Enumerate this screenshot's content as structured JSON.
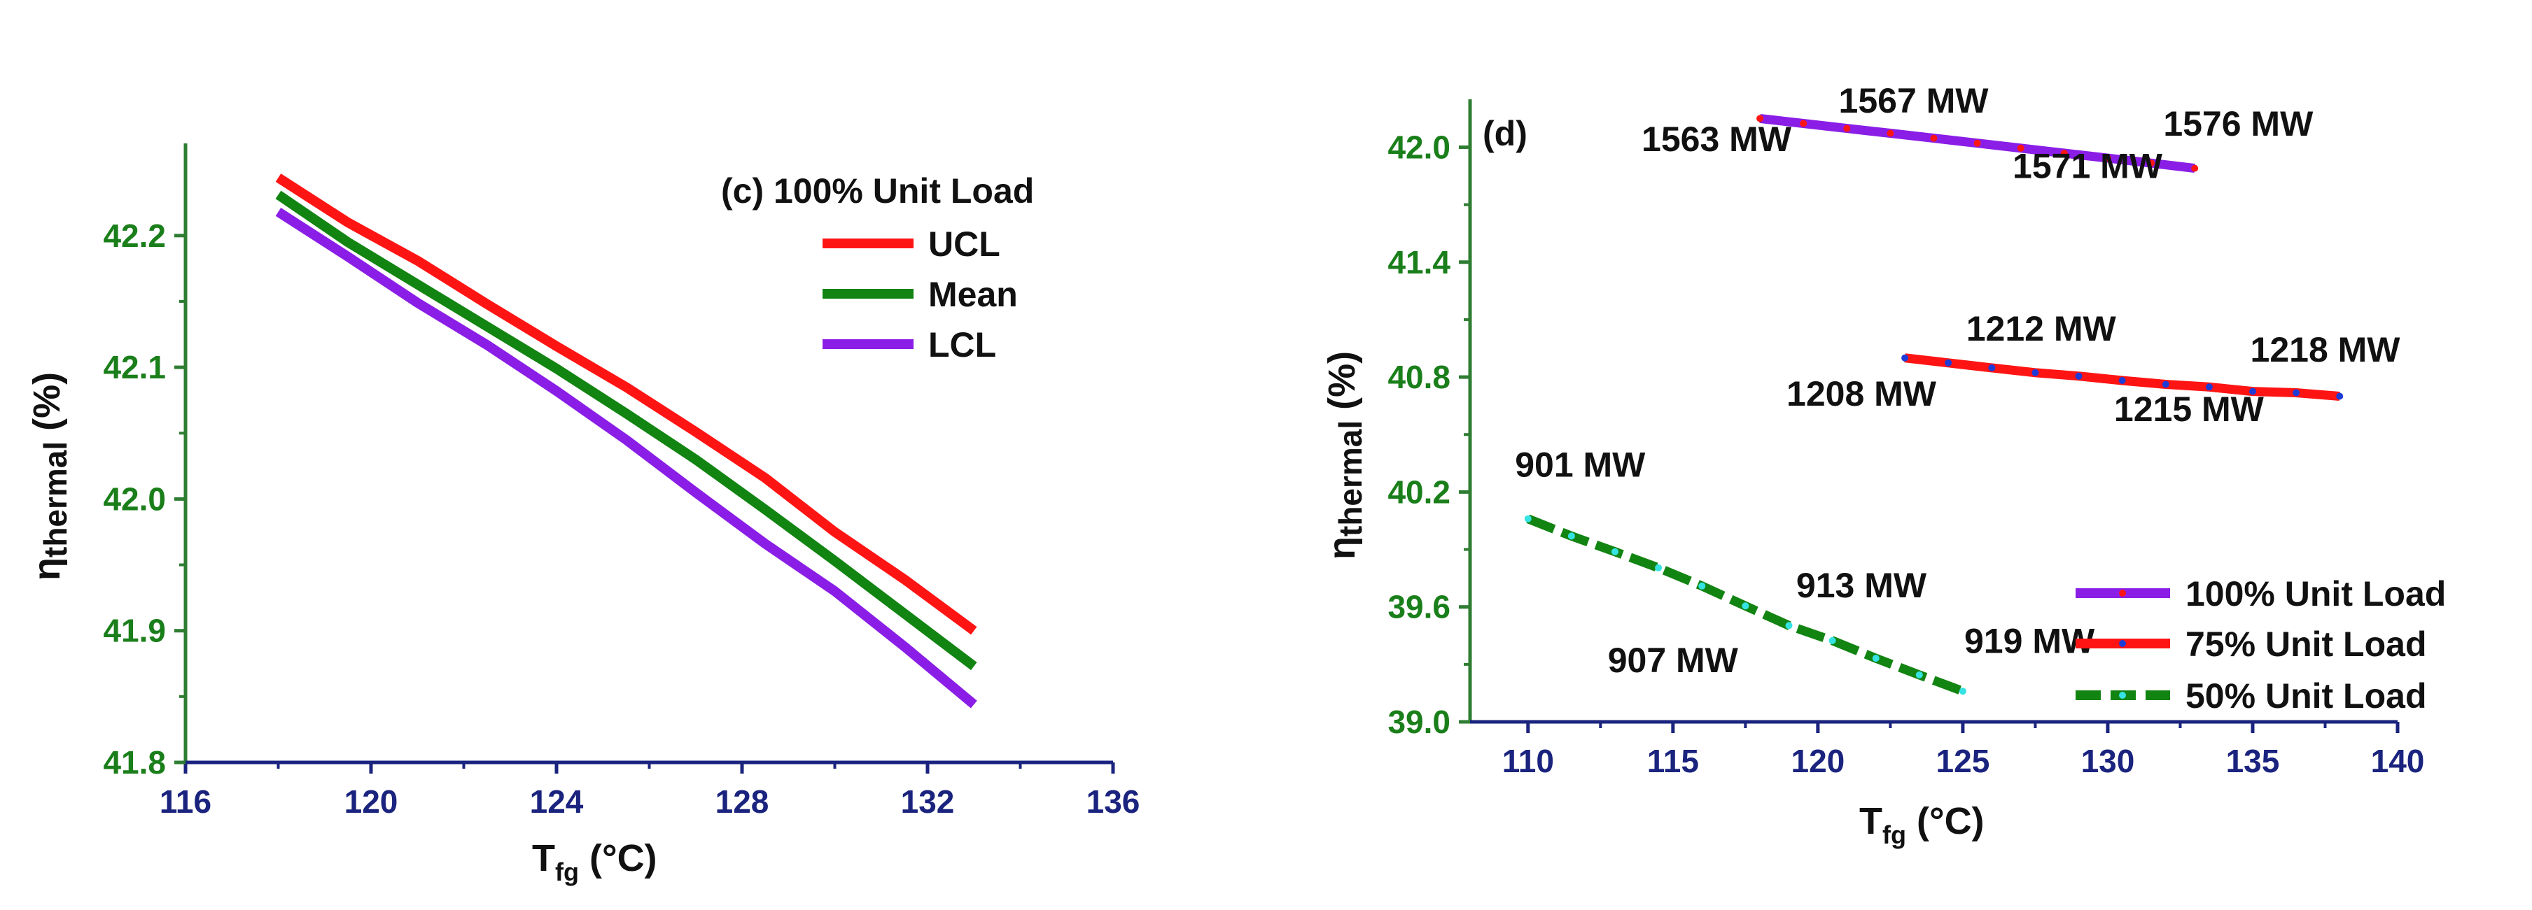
{
  "colors": {
    "ytick": "#1a7f1a",
    "xtick": "#1a237e",
    "axis": "#2e7d32",
    "ucl": "#ff1414",
    "mean": "#128412",
    "lcl": "#8a1ee6",
    "load100": "#8a1ee6",
    "load75": "#ff1414",
    "load50": "#128412",
    "dot75": "#1f3bd6",
    "dot50": "#35e3e3",
    "dot100": "#ff1414"
  },
  "chart_data": [
    {
      "id": "c",
      "type": "line",
      "title": "(c) 100% Unit Load",
      "xlabel_main": "T",
      "xlabel_sub": "fg",
      "xlabel_unit": " (°C)",
      "ylabel_main": "η",
      "ylabel_sub": "thermal",
      "ylabel_unit": " (%)",
      "xlim": [
        116,
        136
      ],
      "ylim": [
        41.8,
        42.27
      ],
      "xticks": [
        "116",
        "120",
        "124",
        "128",
        "132",
        "136"
      ],
      "yticks": [
        "41.8",
        "41.9",
        "42.0",
        "42.1",
        "42.2"
      ],
      "x": [
        118,
        119.5,
        121,
        122.5,
        124,
        125.5,
        127,
        128.5,
        130,
        131.5,
        133
      ],
      "series": [
        {
          "name": "UCL",
          "color_key": "ucl",
          "values": [
            42.244,
            42.21,
            42.181,
            42.148,
            42.116,
            42.085,
            42.051,
            42.016,
            41.975,
            41.939,
            41.9
          ]
        },
        {
          "name": "Mean",
          "color_key": "mean",
          "values": [
            42.231,
            42.195,
            42.163,
            42.131,
            42.099,
            42.065,
            42.03,
            41.992,
            41.953,
            41.913,
            41.873
          ]
        },
        {
          "name": "LCL",
          "color_key": "lcl",
          "values": [
            42.218,
            42.184,
            42.149,
            42.117,
            42.082,
            42.045,
            42.005,
            41.966,
            41.93,
            41.888,
            41.844
          ]
        }
      ]
    },
    {
      "id": "d",
      "type": "line",
      "panel_label": "(d)",
      "xlabel_main": "T",
      "xlabel_sub": "fg",
      "xlabel_unit": " (°C)",
      "ylabel_main": "η",
      "ylabel_sub": "thermal",
      "ylabel_unit": " (%)",
      "xlim": [
        108,
        140
      ],
      "ylim": [
        39.0,
        42.25
      ],
      "xticks": [
        "110",
        "115",
        "120",
        "125",
        "130",
        "135",
        "140"
      ],
      "yticks": [
        "39.0",
        "39.6",
        "40.2",
        "40.8",
        "41.4",
        "42.0"
      ],
      "series": [
        {
          "name": "100% Unit Load",
          "color_key": "load100",
          "dot_key": "dot100",
          "x": [
            118,
            119.5,
            121,
            122.5,
            124,
            125.5,
            127,
            128.5,
            130,
            131.5,
            133
          ],
          "values": [
            42.15,
            42.124,
            42.098,
            42.073,
            42.047,
            42.021,
            41.995,
            41.969,
            41.943,
            41.917,
            41.89
          ]
        },
        {
          "name": "75% Unit Load",
          "color_key": "load75",
          "dot_key": "dot75",
          "x": [
            123,
            124.5,
            126,
            127.5,
            129,
            130.5,
            132,
            133.5,
            135,
            136.5,
            138
          ],
          "values": [
            40.9,
            40.874,
            40.848,
            40.823,
            40.805,
            40.782,
            40.762,
            40.748,
            40.725,
            40.718,
            40.7
          ]
        },
        {
          "name": "50% Unit Load",
          "color_key": "load50",
          "dot_key": "dot50",
          "x": [
            110,
            111.5,
            113,
            114.5,
            116,
            117.5,
            119,
            120.5,
            122,
            123.5,
            125
          ],
          "values": [
            40.06,
            39.97,
            39.888,
            39.804,
            39.709,
            39.605,
            39.503,
            39.424,
            39.332,
            39.245,
            39.16
          ]
        }
      ],
      "annotations": [
        {
          "text": "1567 MW",
          "x": 123.3,
          "y": 42.18
        },
        {
          "text": "1576 MW",
          "x": 134.5,
          "y": 42.06
        },
        {
          "text": "1563 MW",
          "x": 116.5,
          "y": 41.98
        },
        {
          "text": "1571 MW",
          "x": 129.3,
          "y": 41.84
        },
        {
          "text": "1212 MW",
          "x": 127.7,
          "y": 40.99
        },
        {
          "text": "1218 MW",
          "x": 137.5,
          "y": 40.88
        },
        {
          "text": "1208 MW",
          "x": 121.5,
          "y": 40.65
        },
        {
          "text": "1215 MW",
          "x": 132.8,
          "y": 40.57
        },
        {
          "text": "901 MW",
          "x": 111.8,
          "y": 40.28
        },
        {
          "text": "913 MW",
          "x": 121.5,
          "y": 39.65
        },
        {
          "text": "907 MW",
          "x": 115.0,
          "y": 39.26
        },
        {
          "text": "919 MW",
          "x": 127.3,
          "y": 39.36
        }
      ]
    }
  ]
}
